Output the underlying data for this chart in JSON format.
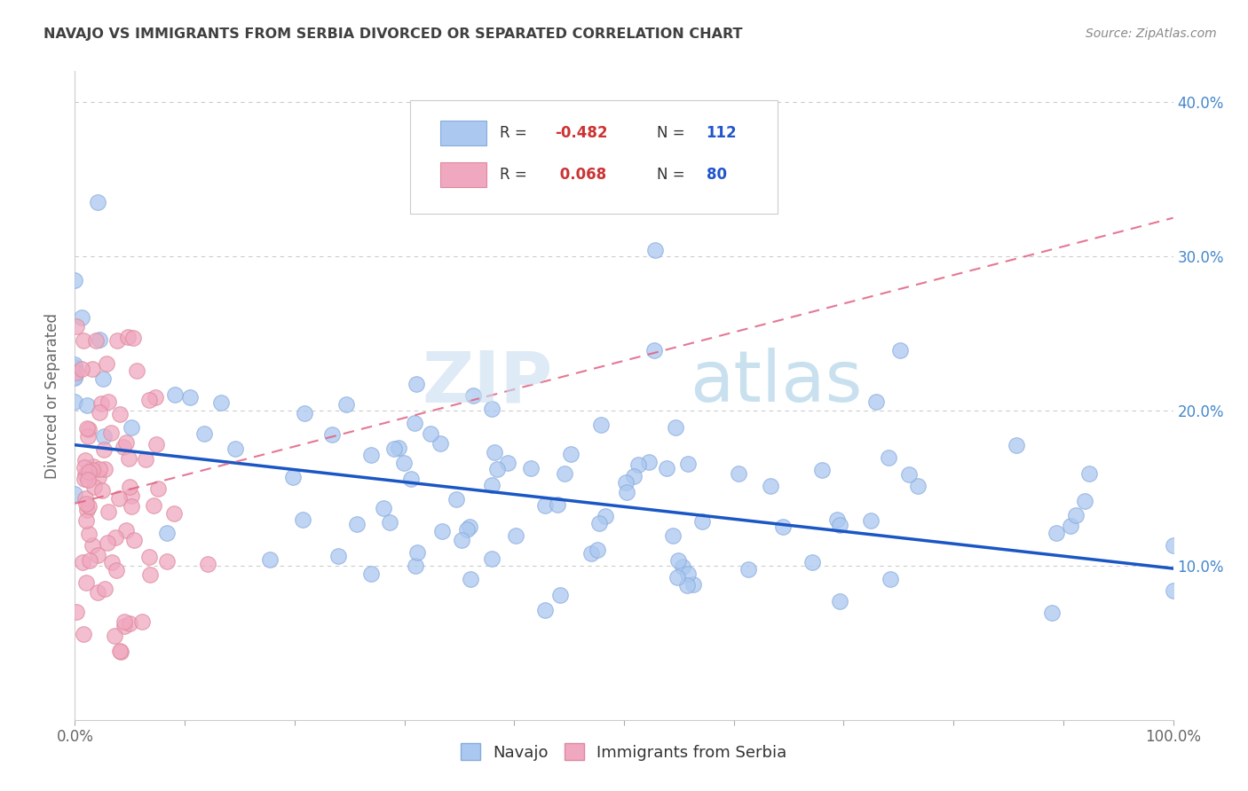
{
  "title": "NAVAJO VS IMMIGRANTS FROM SERBIA DIVORCED OR SEPARATED CORRELATION CHART",
  "source": "Source: ZipAtlas.com",
  "ylabel": "Divorced or Separated",
  "xlim": [
    0.0,
    1.0
  ],
  "ylim": [
    0.0,
    0.42
  ],
  "xtick_positions": [
    0.0,
    0.1,
    0.2,
    0.3,
    0.4,
    0.5,
    0.6,
    0.7,
    0.8,
    0.9,
    1.0
  ],
  "xticklabels_sparse": {
    "0.0": "0.0%",
    "1.0": "100.0%"
  },
  "ytick_positions": [
    0.1,
    0.2,
    0.3,
    0.4
  ],
  "yticklabels": [
    "10.0%",
    "20.0%",
    "30.0%",
    "40.0%"
  ],
  "legend_labels": [
    "Navajo",
    "Immigrants from Serbia"
  ],
  "navajo_R": -0.482,
  "navajo_N": 112,
  "serbia_R": 0.068,
  "serbia_N": 80,
  "navajo_color": "#aac8f0",
  "navajo_edge_color": "#88aadd",
  "serbia_color": "#f0a8c0",
  "serbia_edge_color": "#dd8899",
  "navajo_line_color": "#1a56c4",
  "serbia_line_color": "#e06080",
  "background_color": "#ffffff",
  "grid_color": "#cccccc",
  "title_color": "#404040",
  "watermark_zip": "ZIP",
  "watermark_atlas": "atlas",
  "navajo_seed": 42,
  "serbia_seed": 77
}
